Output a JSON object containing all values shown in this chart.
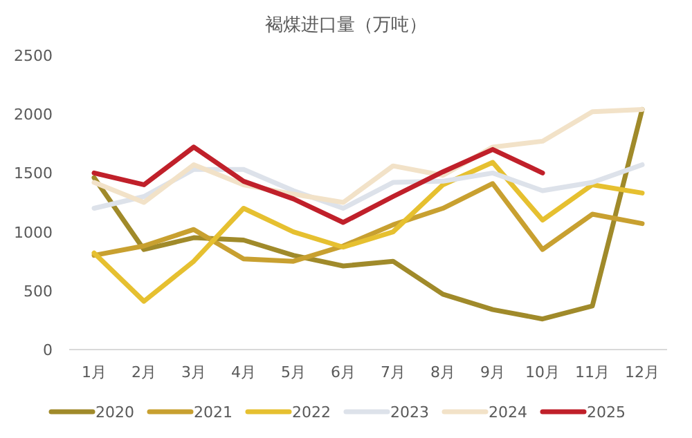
{
  "chart_data": {
    "type": "line",
    "title": "褐煤进口量（万吨）",
    "categories": [
      "1月",
      "2月",
      "3月",
      "4月",
      "5月",
      "6月",
      "7月",
      "8月",
      "9月",
      "10月",
      "11月",
      "12月"
    ],
    "ylim": [
      0,
      2500
    ],
    "yticks": [
      0,
      500,
      1000,
      1500,
      2000,
      2500
    ],
    "grid": false,
    "legend": "bottom",
    "marker": "none",
    "line_style": "solid",
    "series": [
      {
        "name": "2020",
        "color": "#a08a2a",
        "values": [
          1460,
          850,
          950,
          930,
          800,
          710,
          750,
          470,
          340,
          260,
          370,
          2040
        ]
      },
      {
        "name": "2021",
        "color": "#c8a030",
        "values": [
          800,
          880,
          1020,
          770,
          750,
          880,
          1060,
          1200,
          1410,
          850,
          1150,
          1070
        ]
      },
      {
        "name": "2022",
        "color": "#e6c030",
        "values": [
          820,
          410,
          750,
          1200,
          1000,
          870,
          1000,
          1400,
          1590,
          1100,
          1400,
          1330
        ]
      },
      {
        "name": "2023",
        "color": "#dde2ea",
        "values": [
          1200,
          1300,
          1530,
          1530,
          1350,
          1200,
          1420,
          1430,
          1500,
          1350,
          1420,
          1570
        ]
      },
      {
        "name": "2024",
        "color": "#f2e2c8",
        "values": [
          1420,
          1250,
          1570,
          1400,
          1320,
          1250,
          1560,
          1480,
          1720,
          1770,
          2020,
          2040
        ]
      },
      {
        "name": "2025",
        "color": "#c0202a",
        "values": [
          1500,
          1400,
          1720,
          1430,
          1280,
          1080,
          1300,
          1510,
          1700,
          1500,
          null,
          null
        ]
      }
    ]
  }
}
